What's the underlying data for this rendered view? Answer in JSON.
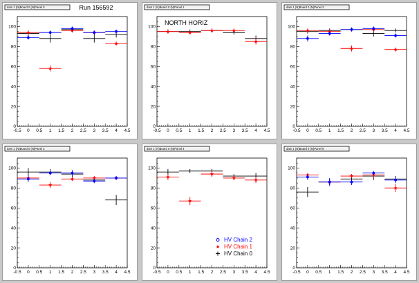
{
  "run_label": "Run 156592",
  "colors": {
    "chain2": "#0000ff",
    "chain1": "#ff0000",
    "chain0": "#000000"
  },
  "legend": [
    {
      "key": "chain2",
      "label": "HV Chain 2",
      "marker": "circle"
    },
    {
      "key": "chain1",
      "label": "HV Chain 1",
      "marker": "star"
    },
    {
      "key": "chain0",
      "label": "HV Chain 0",
      "marker": "cross"
    }
  ],
  "chart_data": [
    {
      "type": "scatter",
      "title": "dam 1 (N)Board 0 (N)Panel 0",
      "annotation": "",
      "xlim": [
        -0.5,
        4.5
      ],
      "ylim": [
        0,
        110
      ],
      "x_ticks": [
        -0.5,
        0,
        0.5,
        1,
        1.5,
        2,
        2.5,
        3,
        3.5,
        4,
        4.5
      ],
      "x_tick_labels": [
        "-0.5",
        "0",
        "0.5",
        "1",
        "1.5",
        "2",
        "2.5",
        "3",
        "3.5",
        "4",
        "4.5"
      ],
      "y_ticks": [
        0,
        20,
        40,
        60,
        80,
        100
      ],
      "x_errors": [
        0.5,
        0.5,
        0.5,
        0.5,
        0.5
      ],
      "series": [
        {
          "key": "chain2",
          "x": [
            0,
            1,
            2,
            3,
            4
          ],
          "y": [
            89,
            94,
            98,
            94,
            95
          ],
          "yerr": [
            2,
            2,
            2,
            2,
            2
          ]
        },
        {
          "key": "chain1",
          "x": [
            0,
            1,
            2,
            3,
            4
          ],
          "y": [
            94,
            58,
            96,
            94,
            83
          ],
          "yerr": [
            2,
            3,
            2,
            2,
            2
          ]
        },
        {
          "key": "chain0",
          "x": [
            0,
            1,
            2,
            3,
            4
          ],
          "y": [
            93,
            88,
            97,
            88,
            92
          ],
          "yerr": [
            3,
            4,
            2,
            4,
            3
          ]
        }
      ]
    },
    {
      "type": "scatter",
      "title": "dam 1 (N)Board 0 (N)Panel 1",
      "annotation": "NORTH HORIZ",
      "xlim": [
        -0.5,
        4.5
      ],
      "ylim": [
        0,
        110
      ],
      "x_ticks": [
        -0.5,
        0,
        0.5,
        1,
        1.5,
        2,
        2.5,
        3,
        3.5,
        4,
        4.5
      ],
      "x_tick_labels": [
        "-0.5",
        "0",
        "0.5",
        "1",
        "1.5",
        "2",
        "2.5",
        "3",
        "3.5",
        "4",
        "4.5"
      ],
      "y_ticks": [
        0,
        20,
        40,
        60,
        80,
        100
      ],
      "x_errors": [
        0.5,
        0.5,
        0.5,
        0.5,
        0.5
      ],
      "series": [
        {
          "key": "chain2",
          "x": [],
          "y": [],
          "yerr": []
        },
        {
          "key": "chain1",
          "x": [
            0,
            1,
            2,
            3,
            4
          ],
          "y": [
            95,
            94,
            96,
            96,
            85
          ],
          "yerr": [
            2,
            2,
            2,
            2,
            3
          ]
        },
        {
          "key": "chain0",
          "x": [
            0,
            1,
            2,
            3,
            4
          ],
          "y": [
            95,
            95,
            96,
            94,
            88
          ],
          "yerr": [
            2,
            2,
            2,
            2,
            3
          ]
        }
      ]
    },
    {
      "type": "scatter",
      "title": "dam 1 (N)Board 0 (N)Panel 2",
      "annotation": "",
      "xlim": [
        -0.5,
        4.5
      ],
      "ylim": [
        0,
        110
      ],
      "x_ticks": [
        -0.5,
        0,
        0.5,
        1,
        1.5,
        2,
        2.5,
        3,
        3.5,
        4,
        4.5
      ],
      "x_tick_labels": [
        "-0.5",
        "0",
        "0.5",
        "1",
        "1.5",
        "2",
        "2.5",
        "3",
        "3.5",
        "4",
        "4.5"
      ],
      "y_ticks": [
        0,
        20,
        40,
        60,
        80,
        100
      ],
      "x_errors": [
        0.5,
        0.5,
        0.5,
        0.5,
        0.5
      ],
      "series": [
        {
          "key": "chain2",
          "x": [
            0,
            1,
            2,
            3,
            4
          ],
          "y": [
            88,
            93,
            97,
            98,
            91
          ],
          "yerr": [
            3,
            2,
            2,
            2,
            2
          ]
        },
        {
          "key": "chain1",
          "x": [
            0,
            1,
            2,
            3,
            4
          ],
          "y": [
            96,
            95,
            78,
            97,
            77
          ],
          "yerr": [
            2,
            2,
            3,
            2,
            2
          ]
        },
        {
          "key": "chain0",
          "x": [
            0,
            1,
            2,
            3,
            4
          ],
          "y": [
            95,
            96,
            97,
            93,
            96
          ],
          "yerr": [
            2,
            2,
            2,
            3,
            2
          ]
        }
      ]
    },
    {
      "type": "scatter",
      "title": "dam 1 (N)Board 0 (N)Panel 3",
      "annotation": "",
      "xlim": [
        -0.5,
        4.5
      ],
      "ylim": [
        0,
        110
      ],
      "x_ticks": [
        -0.5,
        0,
        0.5,
        1,
        1.5,
        2,
        2.5,
        3,
        3.5,
        4,
        4.5
      ],
      "x_tick_labels": [
        "-0.5",
        "0",
        "0.5",
        "1",
        "1.5",
        "2",
        "2.5",
        "3",
        "3.5",
        "4",
        "4.5"
      ],
      "y_ticks": [
        0,
        20,
        40,
        60,
        80,
        100
      ],
      "x_errors": [
        0.5,
        0.5,
        0.5,
        0.5,
        0.5
      ],
      "series": [
        {
          "key": "chain2",
          "x": [
            0,
            1,
            2,
            3,
            4
          ],
          "y": [
            89,
            95,
            95,
            87,
            90
          ],
          "yerr": [
            3,
            2,
            3,
            2,
            2
          ]
        },
        {
          "key": "chain1",
          "x": [
            0,
            1,
            2,
            3,
            4
          ],
          "y": [
            90,
            83,
            89,
            90,
            90
          ],
          "yerr": [
            2,
            3,
            2,
            2,
            2
          ]
        },
        {
          "key": "chain0",
          "x": [
            0,
            1,
            2,
            3,
            4
          ],
          "y": [
            96,
            96,
            94,
            88,
            68
          ],
          "yerr": [
            4,
            3,
            3,
            3,
            5
          ]
        }
      ]
    },
    {
      "type": "scatter",
      "title": "dam 1 (N)Board 0 (N)Panel 4",
      "annotation": "",
      "xlim": [
        -0.5,
        4.5
      ],
      "ylim": [
        0,
        110
      ],
      "x_ticks": [
        -0.5,
        0,
        0.5,
        1,
        1.5,
        2,
        2.5,
        3,
        3.5,
        4,
        4.5
      ],
      "x_tick_labels": [
        "-0.5",
        "0",
        "0.5",
        "1",
        "1.5",
        "2",
        "2.5",
        "3",
        "3.5",
        "4",
        "4.5"
      ],
      "y_ticks": [
        0,
        20,
        40,
        60,
        80,
        100
      ],
      "x_errors": [
        0.5,
        0.5,
        0.5,
        0.5,
        0.5
      ],
      "series": [
        {
          "key": "chain2",
          "x": [],
          "y": [],
          "yerr": []
        },
        {
          "key": "chain1",
          "x": [
            0,
            1,
            2,
            3,
            4
          ],
          "y": [
            91,
            67,
            94,
            90,
            88
          ],
          "yerr": [
            3,
            4,
            3,
            2,
            3
          ]
        },
        {
          "key": "chain0",
          "x": [
            0,
            1,
            2,
            3,
            4
          ],
          "y": [
            96,
            97,
            97,
            92,
            92
          ],
          "yerr": [
            3,
            2,
            2,
            2,
            3
          ]
        }
      ]
    },
    {
      "type": "scatter",
      "title": "dam 1 (N)Board 0 (N)Panel 5",
      "annotation": "",
      "xlim": [
        -0.5,
        4.5
      ],
      "ylim": [
        0,
        110
      ],
      "x_ticks": [
        -0.5,
        0,
        0.5,
        1,
        1.5,
        2,
        2.5,
        3,
        3.5,
        4,
        4.5
      ],
      "x_tick_labels": [
        "-0.5",
        "0",
        "0.5",
        "1",
        "1.5",
        "2",
        "2.5",
        "3",
        "3.5",
        "4",
        "4.5"
      ],
      "y_ticks": [
        0,
        20,
        40,
        60,
        80,
        100
      ],
      "x_errors": [
        0.5,
        0.5,
        0.5,
        0.5,
        0.5
      ],
      "series": [
        {
          "key": "chain2",
          "x": [
            0,
            1,
            2,
            3,
            4
          ],
          "y": [
            91,
            86,
            86,
            95,
            88
          ],
          "yerr": [
            3,
            4,
            3,
            2,
            3
          ]
        },
        {
          "key": "chain1",
          "x": [
            0,
            1,
            2,
            3,
            4
          ],
          "y": [
            93,
            86,
            92,
            93,
            80
          ],
          "yerr": [
            2,
            2,
            2,
            3,
            4
          ]
        },
        {
          "key": "chain0",
          "x": [
            0,
            1,
            2,
            3,
            4
          ],
          "y": [
            76,
            86,
            89,
            92,
            89
          ],
          "yerr": [
            5,
            3,
            3,
            4,
            3
          ]
        }
      ]
    }
  ]
}
